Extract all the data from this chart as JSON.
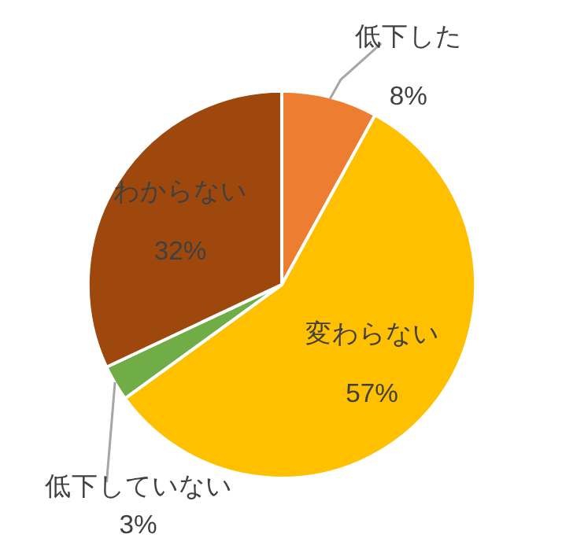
{
  "chart_data": {
    "type": "pie",
    "categories": [
      "低下した",
      "変わらない",
      "低下していない",
      "わからない"
    ],
    "values": [
      8,
      57,
      3,
      32
    ],
    "colors": [
      "#ed7d31",
      "#ffc000",
      "#70ad47",
      "#9e480e"
    ],
    "value_labels": [
      "8%",
      "57%",
      "3%",
      "32%"
    ],
    "legend": false
  }
}
